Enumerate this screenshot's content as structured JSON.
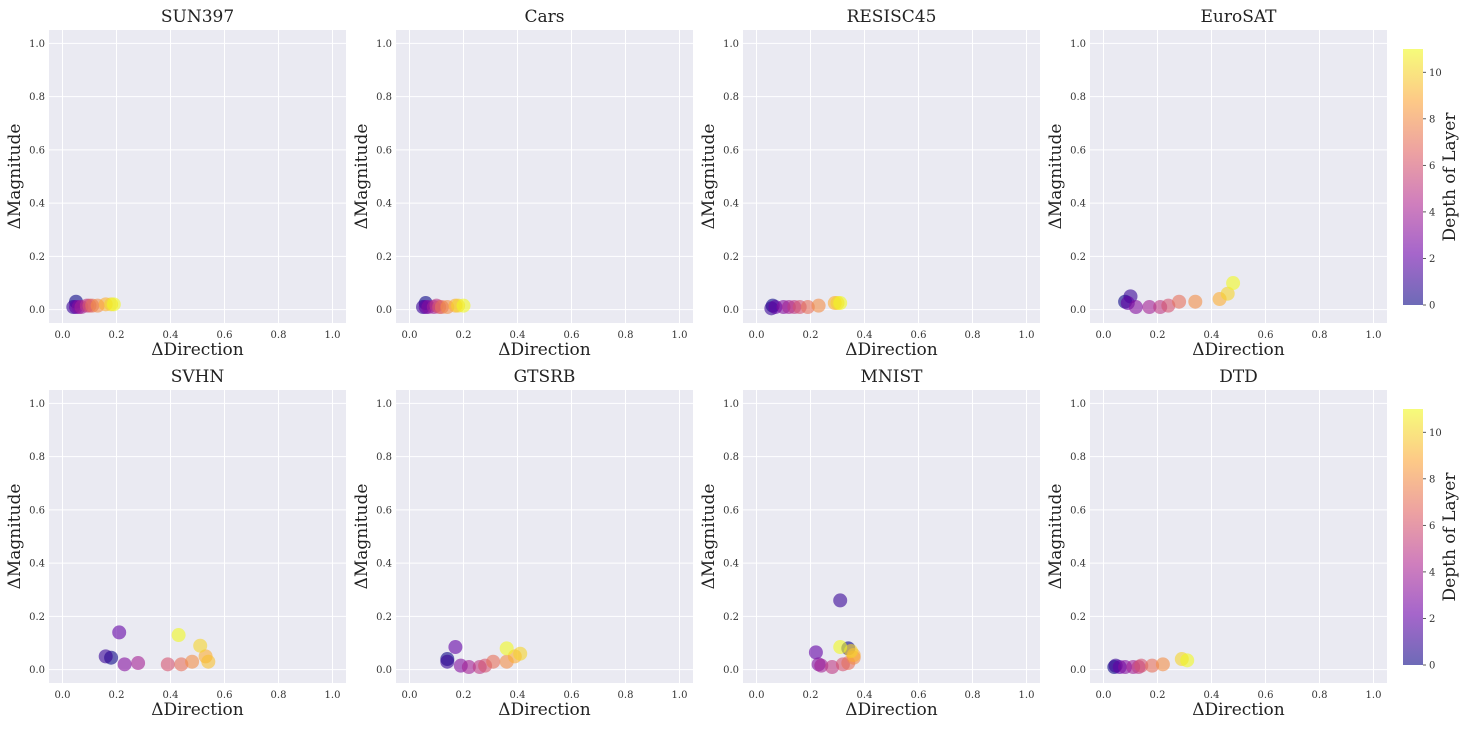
{
  "colorbar": {
    "label": "Depth of Layer",
    "range": [
      0,
      11
    ],
    "ticks": [
      "0",
      "2",
      "4",
      "6",
      "8",
      "10"
    ],
    "colormap": "plasma",
    "stops": [
      "#0d0887",
      "#6a00a8",
      "#b12a90",
      "#e16462",
      "#fca636",
      "#f0f921"
    ],
    "alpha": 0.6
  },
  "chart_data": [
    {
      "type": "scatter",
      "title": "SUN397",
      "xlabel": "ΔDirection",
      "ylabel": "ΔMagnitude",
      "xlim": [
        -0.05,
        1.05
      ],
      "ylim": [
        -0.05,
        1.05
      ],
      "xticks": [
        "0.0",
        "0.2",
        "0.4",
        "0.6",
        "0.8",
        "1.0"
      ],
      "yticks": [
        "0.0",
        "0.2",
        "0.4",
        "0.6",
        "0.8",
        "1.0"
      ],
      "grid": true,
      "points": [
        {
          "x": 0.05,
          "y": 0.03,
          "depth": 0
        },
        {
          "x": 0.04,
          "y": 0.01,
          "depth": 1
        },
        {
          "x": 0.05,
          "y": 0.01,
          "depth": 2
        },
        {
          "x": 0.06,
          "y": 0.01,
          "depth": 3
        },
        {
          "x": 0.07,
          "y": 0.01,
          "depth": 4
        },
        {
          "x": 0.09,
          "y": 0.015,
          "depth": 5
        },
        {
          "x": 0.1,
          "y": 0.015,
          "depth": 6
        },
        {
          "x": 0.11,
          "y": 0.015,
          "depth": 7
        },
        {
          "x": 0.13,
          "y": 0.015,
          "depth": 8
        },
        {
          "x": 0.16,
          "y": 0.02,
          "depth": 9
        },
        {
          "x": 0.18,
          "y": 0.02,
          "depth": 10
        },
        {
          "x": 0.19,
          "y": 0.02,
          "depth": 11
        }
      ]
    },
    {
      "type": "scatter",
      "title": "Cars",
      "xlabel": "ΔDirection",
      "ylabel": "ΔMagnitude",
      "xlim": [
        -0.05,
        1.05
      ],
      "ylim": [
        -0.05,
        1.05
      ],
      "xticks": [
        "0.0",
        "0.2",
        "0.4",
        "0.6",
        "0.8",
        "1.0"
      ],
      "yticks": [
        "0.0",
        "0.2",
        "0.4",
        "0.6",
        "0.8",
        "1.0"
      ],
      "grid": true,
      "points": [
        {
          "x": 0.06,
          "y": 0.025,
          "depth": 0
        },
        {
          "x": 0.05,
          "y": 0.01,
          "depth": 1
        },
        {
          "x": 0.06,
          "y": 0.01,
          "depth": 2
        },
        {
          "x": 0.07,
          "y": 0.01,
          "depth": 3
        },
        {
          "x": 0.09,
          "y": 0.01,
          "depth": 4
        },
        {
          "x": 0.1,
          "y": 0.015,
          "depth": 5
        },
        {
          "x": 0.11,
          "y": 0.01,
          "depth": 6
        },
        {
          "x": 0.12,
          "y": 0.01,
          "depth": 7
        },
        {
          "x": 0.14,
          "y": 0.01,
          "depth": 8
        },
        {
          "x": 0.17,
          "y": 0.015,
          "depth": 9
        },
        {
          "x": 0.18,
          "y": 0.015,
          "depth": 10
        },
        {
          "x": 0.2,
          "y": 0.015,
          "depth": 11
        }
      ]
    },
    {
      "type": "scatter",
      "title": "RESISC45",
      "xlabel": "ΔDirection",
      "ylabel": "ΔMagnitude",
      "xlim": [
        -0.05,
        1.05
      ],
      "ylim": [
        -0.05,
        1.05
      ],
      "xticks": [
        "0.0",
        "0.2",
        "0.4",
        "0.6",
        "0.8",
        "1.0"
      ],
      "yticks": [
        "0.0",
        "0.2",
        "0.4",
        "0.6",
        "0.8",
        "1.0"
      ],
      "grid": true,
      "points": [
        {
          "x": 0.06,
          "y": 0.015,
          "depth": 0
        },
        {
          "x": 0.055,
          "y": 0.005,
          "depth": 1
        },
        {
          "x": 0.07,
          "y": 0.01,
          "depth": 2
        },
        {
          "x": 0.1,
          "y": 0.01,
          "depth": 3
        },
        {
          "x": 0.12,
          "y": 0.01,
          "depth": 4
        },
        {
          "x": 0.14,
          "y": 0.01,
          "depth": 5
        },
        {
          "x": 0.16,
          "y": 0.01,
          "depth": 6
        },
        {
          "x": 0.19,
          "y": 0.01,
          "depth": 7
        },
        {
          "x": 0.23,
          "y": 0.015,
          "depth": 8
        },
        {
          "x": 0.29,
          "y": 0.025,
          "depth": 9
        },
        {
          "x": 0.3,
          "y": 0.025,
          "depth": 10
        },
        {
          "x": 0.31,
          "y": 0.025,
          "depth": 11
        }
      ]
    },
    {
      "type": "scatter",
      "title": "EuroSAT",
      "xlabel": "ΔDirection",
      "ylabel": "ΔMagnitude",
      "xlim": [
        -0.05,
        1.05
      ],
      "ylim": [
        -0.05,
        1.05
      ],
      "xticks": [
        "0.0",
        "0.2",
        "0.4",
        "0.6",
        "0.8",
        "1.0"
      ],
      "yticks": [
        "0.0",
        "0.2",
        "0.4",
        "0.6",
        "0.8",
        "1.0"
      ],
      "grid": true,
      "points": [
        {
          "x": 0.08,
          "y": 0.03,
          "depth": 0
        },
        {
          "x": 0.1,
          "y": 0.05,
          "depth": 1
        },
        {
          "x": 0.09,
          "y": 0.025,
          "depth": 2
        },
        {
          "x": 0.12,
          "y": 0.01,
          "depth": 3
        },
        {
          "x": 0.17,
          "y": 0.01,
          "depth": 4
        },
        {
          "x": 0.21,
          "y": 0.01,
          "depth": 5
        },
        {
          "x": 0.24,
          "y": 0.015,
          "depth": 6
        },
        {
          "x": 0.28,
          "y": 0.03,
          "depth": 7
        },
        {
          "x": 0.34,
          "y": 0.03,
          "depth": 8
        },
        {
          "x": 0.43,
          "y": 0.04,
          "depth": 9
        },
        {
          "x": 0.46,
          "y": 0.06,
          "depth": 10
        },
        {
          "x": 0.48,
          "y": 0.1,
          "depth": 11
        }
      ]
    },
    {
      "type": "scatter",
      "title": "SVHN",
      "xlabel": "ΔDirection",
      "ylabel": "ΔMagnitude",
      "xlim": [
        -0.05,
        1.05
      ],
      "ylim": [
        -0.05,
        1.05
      ],
      "xticks": [
        "0.0",
        "0.2",
        "0.4",
        "0.6",
        "0.8",
        "1.0"
      ],
      "yticks": [
        "0.0",
        "0.2",
        "0.4",
        "0.6",
        "0.8",
        "1.0"
      ],
      "grid": true,
      "points": [
        {
          "x": 0.18,
          "y": 0.045,
          "depth": 0
        },
        {
          "x": 0.16,
          "y": 0.05,
          "depth": 1
        },
        {
          "x": 0.21,
          "y": 0.14,
          "depth": 2
        },
        {
          "x": 0.23,
          "y": 0.02,
          "depth": 3
        },
        {
          "x": 0.28,
          "y": 0.025,
          "depth": 4
        },
        {
          "x": 0.39,
          "y": 0.02,
          "depth": 6
        },
        {
          "x": 0.44,
          "y": 0.02,
          "depth": 7
        },
        {
          "x": 0.48,
          "y": 0.03,
          "depth": 8
        },
        {
          "x": 0.53,
          "y": 0.05,
          "depth": 9
        },
        {
          "x": 0.54,
          "y": 0.03,
          "depth": 9.5
        },
        {
          "x": 0.51,
          "y": 0.09,
          "depth": 10
        },
        {
          "x": 0.43,
          "y": 0.13,
          "depth": 11
        }
      ]
    },
    {
      "type": "scatter",
      "title": "GTSRB",
      "xlabel": "ΔDirection",
      "ylabel": "ΔMagnitude",
      "xlim": [
        -0.05,
        1.05
      ],
      "ylim": [
        -0.05,
        1.05
      ],
      "xticks": [
        "0.0",
        "0.2",
        "0.4",
        "0.6",
        "0.8",
        "1.0"
      ],
      "yticks": [
        "0.0",
        "0.2",
        "0.4",
        "0.6",
        "0.8",
        "1.0"
      ],
      "grid": true,
      "points": [
        {
          "x": 0.14,
          "y": 0.04,
          "depth": 0
        },
        {
          "x": 0.14,
          "y": 0.03,
          "depth": 1
        },
        {
          "x": 0.17,
          "y": 0.085,
          "depth": 2
        },
        {
          "x": 0.19,
          "y": 0.015,
          "depth": 3
        },
        {
          "x": 0.22,
          "y": 0.01,
          "depth": 4
        },
        {
          "x": 0.26,
          "y": 0.01,
          "depth": 5
        },
        {
          "x": 0.28,
          "y": 0.015,
          "depth": 6
        },
        {
          "x": 0.31,
          "y": 0.03,
          "depth": 7
        },
        {
          "x": 0.36,
          "y": 0.03,
          "depth": 8
        },
        {
          "x": 0.39,
          "y": 0.05,
          "depth": 9
        },
        {
          "x": 0.41,
          "y": 0.06,
          "depth": 10
        },
        {
          "x": 0.36,
          "y": 0.08,
          "depth": 11
        }
      ]
    },
    {
      "type": "scatter",
      "title": "MNIST",
      "xlabel": "ΔDirection",
      "ylabel": "ΔMagnitude",
      "xlim": [
        -0.05,
        1.05
      ],
      "ylim": [
        -0.05,
        1.05
      ],
      "xticks": [
        "0.0",
        "0.2",
        "0.4",
        "0.6",
        "0.8",
        "1.0"
      ],
      "yticks": [
        "0.0",
        "0.2",
        "0.4",
        "0.6",
        "0.8",
        "1.0"
      ],
      "grid": true,
      "points": [
        {
          "x": 0.34,
          "y": 0.08,
          "depth": 0
        },
        {
          "x": 0.31,
          "y": 0.26,
          "depth": 1
        },
        {
          "x": 0.22,
          "y": 0.065,
          "depth": 2
        },
        {
          "x": 0.23,
          "y": 0.02,
          "depth": 3
        },
        {
          "x": 0.24,
          "y": 0.015,
          "depth": 4
        },
        {
          "x": 0.28,
          "y": 0.01,
          "depth": 5
        },
        {
          "x": 0.32,
          "y": 0.02,
          "depth": 6
        },
        {
          "x": 0.34,
          "y": 0.025,
          "depth": 7
        },
        {
          "x": 0.36,
          "y": 0.045,
          "depth": 8
        },
        {
          "x": 0.36,
          "y": 0.055,
          "depth": 9
        },
        {
          "x": 0.35,
          "y": 0.07,
          "depth": 10
        },
        {
          "x": 0.31,
          "y": 0.085,
          "depth": 11
        }
      ]
    },
    {
      "type": "scatter",
      "title": "DTD",
      "xlabel": "ΔDirection",
      "ylabel": "ΔMagnitude",
      "xlim": [
        -0.05,
        1.05
      ],
      "ylim": [
        -0.05,
        1.05
      ],
      "xticks": [
        "0.0",
        "0.2",
        "0.4",
        "0.6",
        "0.8",
        "1.0"
      ],
      "yticks": [
        "0.0",
        "0.2",
        "0.4",
        "0.6",
        "0.8",
        "1.0"
      ],
      "grid": true,
      "points": [
        {
          "x": 0.04,
          "y": 0.01,
          "depth": 0
        },
        {
          "x": 0.045,
          "y": 0.015,
          "depth": 1
        },
        {
          "x": 0.06,
          "y": 0.01,
          "depth": 2
        },
        {
          "x": 0.08,
          "y": 0.01,
          "depth": 3
        },
        {
          "x": 0.11,
          "y": 0.01,
          "depth": 4
        },
        {
          "x": 0.13,
          "y": 0.01,
          "depth": 5
        },
        {
          "x": 0.14,
          "y": 0.015,
          "depth": 6
        },
        {
          "x": 0.18,
          "y": 0.015,
          "depth": 7
        },
        {
          "x": 0.22,
          "y": 0.02,
          "depth": 8
        },
        {
          "x": 0.29,
          "y": 0.04,
          "depth": 10
        },
        {
          "x": 0.31,
          "y": 0.035,
          "depth": 11
        }
      ]
    }
  ]
}
